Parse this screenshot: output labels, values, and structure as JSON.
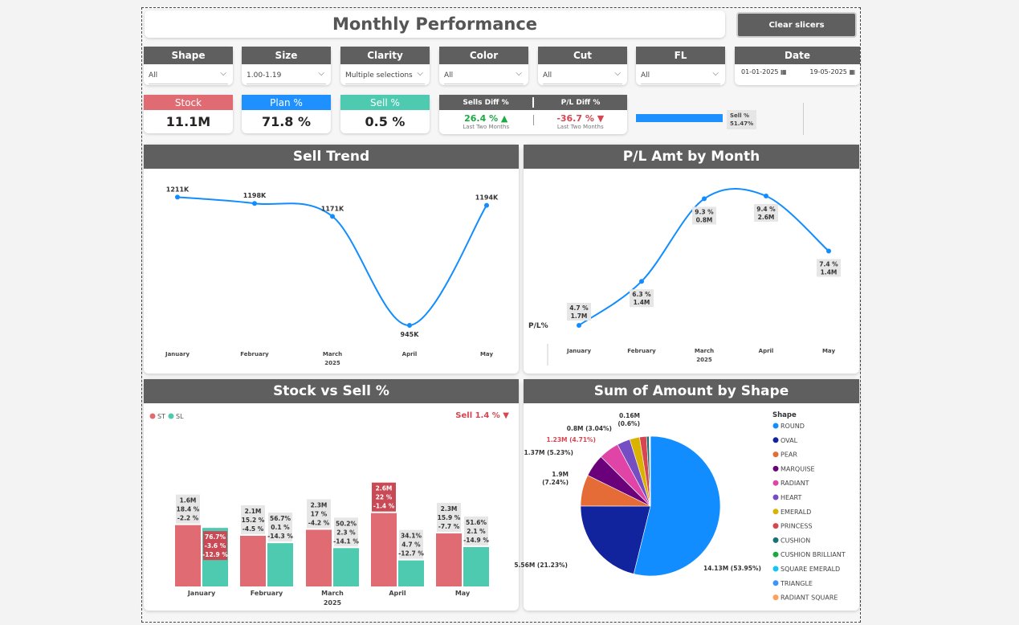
{
  "title": "Monthly Performance",
  "clear_button": "Clear slicers",
  "slicers": [
    {
      "label": "Shape",
      "value": "All"
    },
    {
      "label": "Size",
      "value": "1.00-1.19"
    },
    {
      "label": "Clarity",
      "value": "Multiple selections"
    },
    {
      "label": "Color",
      "value": "All"
    },
    {
      "label": "Cut",
      "value": "All"
    },
    {
      "label": "FL",
      "value": "All"
    }
  ],
  "date_slicer": {
    "label": "Date",
    "from": "01-01-2025",
    "to": "19-05-2025"
  },
  "kpis": [
    {
      "label": "Stock",
      "value": "11.1M",
      "color": "#e06b73"
    },
    {
      "label": "Plan %",
      "value": "71.8 %",
      "color": "#1e90ff"
    },
    {
      "label": "Sell %",
      "value": "0.5 %",
      "color": "#4ecab0"
    }
  ],
  "diff": {
    "sells_label": "Sells Diff %",
    "sells_value": "26.4 % ▲",
    "sells_sub": "Last Two Months",
    "pl_label": "P/L Diff %",
    "pl_value": "-36.7 % ▼",
    "pl_sub": "Last Two Months"
  },
  "sell_gauge": {
    "label": "Sell %",
    "value_text": "51.47%",
    "fraction": 0.5147
  },
  "sell_trend": {
    "title": "Sell Trend",
    "chart_data": {
      "type": "line",
      "categories": [
        "January",
        "February",
        "March",
        "April",
        "May"
      ],
      "values": [
        1211,
        1198,
        1171,
        945,
        1194
      ],
      "labels": [
        "1211K",
        "1198K",
        "1171K",
        "945K",
        "1194K"
      ],
      "year_label": "2025"
    }
  },
  "pl_month": {
    "title": "P/L Amt by Month",
    "ylabel": "P/L%",
    "chart_data": {
      "type": "line",
      "categories": [
        "January",
        "February",
        "March",
        "April",
        "May"
      ],
      "pct": [
        4.7,
        6.3,
        9.3,
        9.4,
        7.4
      ],
      "pct_labels": [
        "4.7 %",
        "6.3 %",
        "9.3 %",
        "9.4 %",
        "7.4 %"
      ],
      "amt_labels": [
        "1.7M",
        "1.4M",
        "0.8M",
        "2.6M",
        "1.4M"
      ],
      "year_label": "2025"
    }
  },
  "stock_sell": {
    "title": "Stock vs Sell %",
    "legend": [
      {
        "name": "ST",
        "color": "#e06b73"
      },
      {
        "name": "SL",
        "color": "#4ecab0"
      }
    ],
    "note": "Sell 1.4 % ▼",
    "chart_data": {
      "type": "bar",
      "categories": [
        "January",
        "February",
        "March",
        "April",
        "May"
      ],
      "year_label": "2025",
      "series": [
        {
          "name": "ST",
          "values": [
            18.4,
            15.2,
            17,
            22,
            15.9
          ],
          "labels": [
            [
              "1.6M",
              "18.4 %",
              "-2.2 %"
            ],
            [
              "2.1M",
              "15.2 %",
              "-4.5 %"
            ],
            [
              "2.3M",
              "17 %",
              "-4.2 %"
            ],
            [
              "2.6M",
              "22 %",
              "-1.4 %"
            ],
            [
              "2.3M",
              "15.9 %",
              "-7.7 %"
            ]
          ]
        },
        {
          "name": "SL",
          "values": [
            76.7,
            56.7,
            50.2,
            34.1,
            51.6
          ],
          "labels": [
            [
              "76.7%",
              "-3.6 %",
              "-12.9 %"
            ],
            [
              "56.7%",
              "0.1 %",
              "-14.3 %"
            ],
            [
              "50.2%",
              "2.3 %",
              "-14.1 %"
            ],
            [
              "34.1%",
              "4.7 %",
              "-12.7 %"
            ],
            [
              "51.6%",
              "2.1 %",
              "-14.9 %"
            ]
          ]
        }
      ]
    }
  },
  "shape_pie": {
    "title": "Sum of Amount by Shape",
    "legend_title": "Shape",
    "chart_data": {
      "type": "pie",
      "slices": [
        {
          "name": "ROUND",
          "value": 53.95,
          "label": "14.13M (53.95%)",
          "color": "#118dff"
        },
        {
          "name": "OVAL",
          "value": 21.23,
          "label": "5.56M (21.23%)",
          "color": "#12239e"
        },
        {
          "name": "PEAR",
          "value": 7.24,
          "label": "1.9M (7.24%)",
          "color": "#e66c37"
        },
        {
          "name": "MARQUISE",
          "value": 5.23,
          "label": "1.37M (5.23%)",
          "color": "#6b007b"
        },
        {
          "name": "RADIANT",
          "value": 4.71,
          "label": "1.23M (4.71%)",
          "color": "#e044a7"
        },
        {
          "name": "HEART",
          "value": 3.04,
          "label": "0.8M (3.04%)",
          "color": "#744ec2"
        },
        {
          "name": "EMERALD",
          "value": 2.3,
          "label": "",
          "color": "#d9b300"
        },
        {
          "name": "PRINCESS",
          "value": 1.6,
          "label": "",
          "color": "#d64550"
        },
        {
          "name": "CUSHION",
          "value": 0.6,
          "label": "0.16M (0.6%)",
          "color": "#197278"
        },
        {
          "name": "CUSHION BRILLIANT",
          "value": 0.1,
          "label": "",
          "color": "#1aab40"
        },
        {
          "name": "SQUARE EMERALD",
          "value": 0.1,
          "label": "",
          "color": "#15c6f4"
        },
        {
          "name": "TRIANGLE",
          "value": 0.05,
          "label": "",
          "color": "#4092ff"
        },
        {
          "name": "RADIANT SQUARE",
          "value": 0.05,
          "label": "",
          "color": "#ffa058"
        }
      ]
    }
  }
}
